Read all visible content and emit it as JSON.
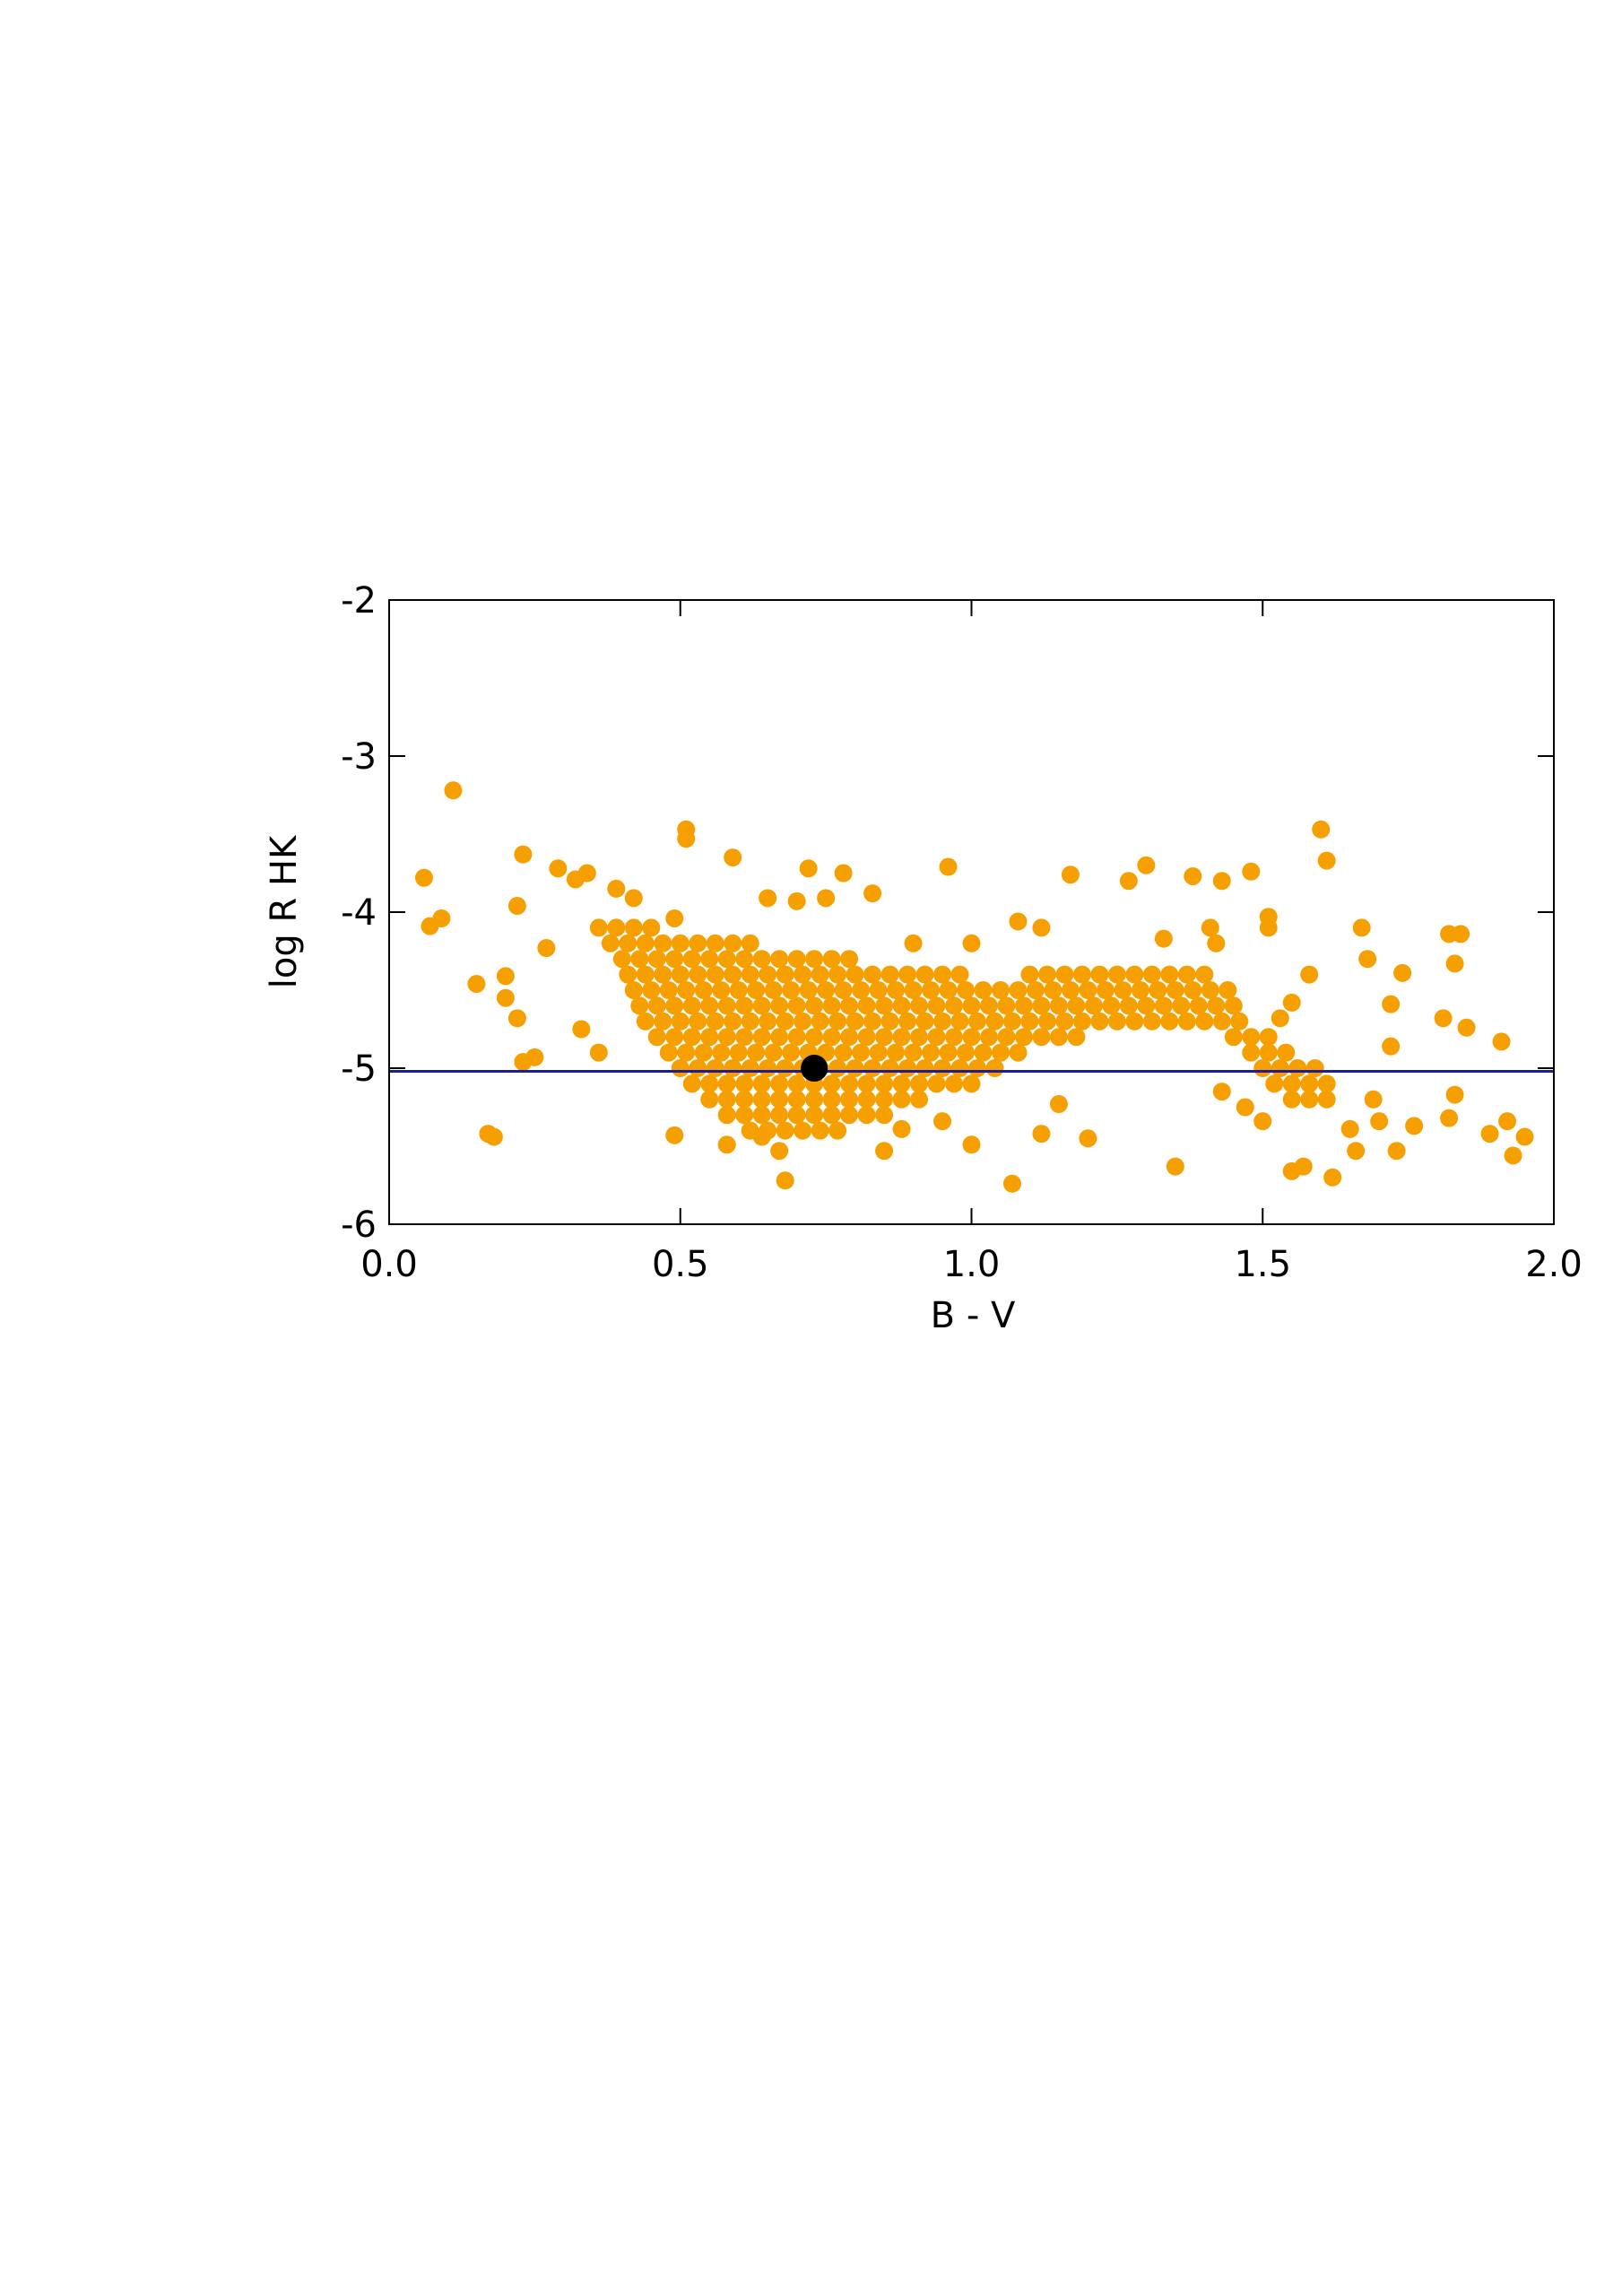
{
  "chart_data": {
    "type": "scatter",
    "xlabel": "B - V",
    "ylabel": "log R HK",
    "xlim": [
      0,
      2
    ],
    "ylim": [
      -6,
      -2
    ],
    "xticks": [
      {
        "value": 0,
        "label": "0.0"
      },
      0.5,
      {
        "value": 1,
        "label": "1.0"
      },
      1.5,
      {
        "value": 2,
        "label": "2.0"
      }
    ],
    "yticks": [
      -2,
      -3,
      -4,
      -5,
      -6
    ],
    "reference_lines": [
      {
        "y": -5.02,
        "color": "#1c1c9c"
      }
    ],
    "series": [
      {
        "color": "#f5a000",
        "x": [
          0.36,
          0.39,
          0.42,
          0.45,
          0.38,
          0.41,
          0.44,
          0.47,
          0.5,
          0.53,
          0.56,
          0.59,
          0.62,
          0.4,
          0.43,
          0.46,
          0.49,
          0.52,
          0.55,
          0.58,
          0.61,
          0.64,
          0.67,
          0.7,
          0.73,
          0.76,
          0.79,
          0.41,
          0.44,
          0.47,
          0.5,
          0.53,
          0.56,
          0.59,
          0.62,
          0.65,
          0.68,
          0.71,
          0.74,
          0.77,
          0.8,
          0.83,
          0.86,
          0.89,
          0.92,
          0.95,
          0.98,
          1.1,
          1.13,
          1.16,
          1.19,
          1.22,
          1.25,
          1.28,
          1.31,
          1.34,
          1.37,
          1.4,
          0.42,
          0.45,
          0.48,
          0.51,
          0.54,
          0.57,
          0.6,
          0.63,
          0.66,
          0.69,
          0.72,
          0.75,
          0.78,
          0.81,
          0.84,
          0.87,
          0.9,
          0.93,
          0.96,
          0.99,
          1.02,
          1.05,
          1.08,
          1.11,
          1.14,
          1.17,
          1.2,
          1.23,
          1.26,
          1.29,
          1.32,
          1.35,
          1.38,
          1.41,
          1.44,
          0.43,
          0.46,
          0.49,
          0.52,
          0.55,
          0.58,
          0.61,
          0.64,
          0.67,
          0.7,
          0.73,
          0.76,
          0.79,
          0.82,
          0.85,
          0.88,
          0.91,
          0.94,
          0.97,
          1.0,
          1.03,
          1.06,
          1.09,
          1.12,
          1.15,
          1.18,
          1.21,
          1.24,
          1.27,
          1.3,
          1.33,
          1.36,
          1.39,
          1.42,
          1.45,
          0.44,
          0.47,
          0.5,
          0.53,
          0.56,
          0.59,
          0.62,
          0.65,
          0.68,
          0.71,
          0.74,
          0.77,
          0.8,
          0.83,
          0.86,
          0.89,
          0.92,
          0.95,
          0.98,
          1.01,
          1.04,
          1.07,
          1.1,
          1.13,
          1.16,
          1.19,
          1.22,
          1.25,
          1.28,
          1.31,
          1.34,
          1.37,
          1.4,
          1.43,
          1.46,
          0.46,
          0.49,
          0.52,
          0.55,
          0.58,
          0.61,
          0.64,
          0.67,
          0.7,
          0.73,
          0.76,
          0.79,
          0.82,
          0.85,
          0.88,
          0.91,
          0.94,
          0.97,
          1.0,
          1.03,
          1.06,
          1.09,
          1.12,
          1.15,
          1.18,
          1.45,
          1.48,
          1.51,
          0.48,
          0.51,
          0.54,
          0.57,
          0.6,
          0.63,
          0.66,
          0.69,
          0.72,
          0.75,
          0.78,
          0.81,
          0.84,
          0.87,
          0.9,
          0.93,
          0.96,
          0.99,
          1.02,
          1.05,
          1.08,
          1.48,
          1.51,
          1.54,
          0.5,
          0.53,
          0.56,
          0.59,
          0.62,
          0.65,
          0.68,
          0.71,
          0.74,
          0.77,
          0.8,
          0.83,
          0.86,
          0.89,
          0.92,
          0.95,
          0.98,
          1.01,
          1.04,
          1.5,
          1.53,
          1.56,
          1.59,
          0.52,
          0.55,
          0.58,
          0.61,
          0.64,
          0.67,
          0.7,
          0.73,
          0.76,
          0.79,
          0.82,
          0.85,
          0.88,
          0.91,
          0.94,
          0.97,
          1.0,
          1.52,
          1.55,
          1.58,
          1.61,
          0.55,
          0.58,
          0.61,
          0.64,
          0.67,
          0.7,
          0.73,
          0.76,
          0.79,
          0.82,
          0.85,
          0.88,
          0.91,
          1.55,
          1.58,
          1.61,
          0.58,
          0.61,
          0.64,
          0.67,
          0.7,
          0.73,
          0.76,
          0.79,
          0.82,
          0.85,
          0.62,
          0.65,
          0.68,
          0.71,
          0.74,
          0.77
        ],
        "values": [
          -4.1,
          -4.1,
          -4.1,
          -4.1,
          -4.2,
          -4.2,
          -4.2,
          -4.2,
          -4.2,
          -4.2,
          -4.2,
          -4.2,
          -4.2,
          -4.3,
          -4.3,
          -4.3,
          -4.3,
          -4.3,
          -4.3,
          -4.3,
          -4.3,
          -4.3,
          -4.3,
          -4.3,
          -4.3,
          -4.3,
          -4.3,
          -4.4,
          -4.4,
          -4.4,
          -4.4,
          -4.4,
          -4.4,
          -4.4,
          -4.4,
          -4.4,
          -4.4,
          -4.4,
          -4.4,
          -4.4,
          -4.4,
          -4.4,
          -4.4,
          -4.4,
          -4.4,
          -4.4,
          -4.4,
          -4.4,
          -4.4,
          -4.4,
          -4.4,
          -4.4,
          -4.4,
          -4.4,
          -4.4,
          -4.4,
          -4.4,
          -4.4,
          -4.5,
          -4.5,
          -4.5,
          -4.5,
          -4.5,
          -4.5,
          -4.5,
          -4.5,
          -4.5,
          -4.5,
          -4.5,
          -4.5,
          -4.5,
          -4.5,
          -4.5,
          -4.5,
          -4.5,
          -4.5,
          -4.5,
          -4.5,
          -4.5,
          -4.5,
          -4.5,
          -4.5,
          -4.5,
          -4.5,
          -4.5,
          -4.5,
          -4.5,
          -4.5,
          -4.5,
          -4.5,
          -4.5,
          -4.5,
          -4.5,
          -4.6,
          -4.6,
          -4.6,
          -4.6,
          -4.6,
          -4.6,
          -4.6,
          -4.6,
          -4.6,
          -4.6,
          -4.6,
          -4.6,
          -4.6,
          -4.6,
          -4.6,
          -4.6,
          -4.6,
          -4.6,
          -4.6,
          -4.6,
          -4.6,
          -4.6,
          -4.6,
          -4.6,
          -4.6,
          -4.6,
          -4.6,
          -4.6,
          -4.6,
          -4.6,
          -4.6,
          -4.6,
          -4.6,
          -4.6,
          -4.6,
          -4.7,
          -4.7,
          -4.7,
          -4.7,
          -4.7,
          -4.7,
          -4.7,
          -4.7,
          -4.7,
          -4.7,
          -4.7,
          -4.7,
          -4.7,
          -4.7,
          -4.7,
          -4.7,
          -4.7,
          -4.7,
          -4.7,
          -4.7,
          -4.7,
          -4.7,
          -4.7,
          -4.7,
          -4.7,
          -4.7,
          -4.7,
          -4.7,
          -4.7,
          -4.7,
          -4.7,
          -4.7,
          -4.7,
          -4.7,
          -4.7,
          -4.8,
          -4.8,
          -4.8,
          -4.8,
          -4.8,
          -4.8,
          -4.8,
          -4.8,
          -4.8,
          -4.8,
          -4.8,
          -4.8,
          -4.8,
          -4.8,
          -4.8,
          -4.8,
          -4.8,
          -4.8,
          -4.8,
          -4.8,
          -4.8,
          -4.8,
          -4.8,
          -4.8,
          -4.8,
          -4.8,
          -4.8,
          -4.8,
          -4.9,
          -4.9,
          -4.9,
          -4.9,
          -4.9,
          -4.9,
          -4.9,
          -4.9,
          -4.9,
          -4.9,
          -4.9,
          -4.9,
          -4.9,
          -4.9,
          -4.9,
          -4.9,
          -4.9,
          -4.9,
          -4.9,
          -4.9,
          -4.9,
          -4.9,
          -4.9,
          -4.9,
          -5.0,
          -5.0,
          -5.0,
          -5.0,
          -5.0,
          -5.0,
          -5.0,
          -5.0,
          -5.0,
          -5.0,
          -5.0,
          -5.0,
          -5.0,
          -5.0,
          -5.0,
          -5.0,
          -5.0,
          -5.0,
          -5.0,
          -5.0,
          -5.0,
          -5.0,
          -5.0,
          -5.1,
          -5.1,
          -5.1,
          -5.1,
          -5.1,
          -5.1,
          -5.1,
          -5.1,
          -5.1,
          -5.1,
          -5.1,
          -5.1,
          -5.1,
          -5.1,
          -5.1,
          -5.1,
          -5.1,
          -5.1,
          -5.1,
          -5.1,
          -5.1,
          -5.2,
          -5.2,
          -5.2,
          -5.2,
          -5.2,
          -5.2,
          -5.2,
          -5.2,
          -5.2,
          -5.2,
          -5.2,
          -5.2,
          -5.2,
          -5.2,
          -5.2,
          -5.2,
          -5.3,
          -5.3,
          -5.3,
          -5.3,
          -5.3,
          -5.3,
          -5.3,
          -5.3,
          -5.3,
          -5.3,
          -5.4,
          -5.4,
          -5.4,
          -5.4,
          -5.4,
          -5.4
        ]
      },
      {
        "color": "#f5a000",
        "x": [
          0.06,
          0.11,
          0.07,
          0.09,
          0.15,
          0.17,
          0.18,
          0.2,
          0.2,
          0.22,
          0.23,
          0.22,
          0.23,
          0.25,
          0.27,
          0.29,
          0.32,
          0.34,
          0.36,
          0.33,
          0.51,
          0.51,
          0.59,
          0.49,
          0.58,
          0.68,
          0.72,
          0.78,
          0.83,
          0.96,
          1.0,
          1.07,
          1.12,
          1.17,
          1.2,
          1.3,
          1.27,
          1.35,
          1.38,
          1.43,
          1.48,
          1.6,
          1.61,
          1.58,
          1.67,
          1.68,
          1.72,
          1.74,
          1.72,
          1.73,
          1.81,
          1.82,
          1.84,
          1.83,
          1.85,
          1.82,
          1.83,
          1.91,
          1.92,
          1.93,
          1.95,
          1.89,
          1.62,
          1.55,
          1.57,
          1.76,
          1.69,
          1.7,
          1.66,
          1.65,
          0.64,
          0.67,
          0.85,
          0.88,
          0.95,
          1.15,
          1.43,
          1.47,
          1.5,
          1.51,
          1.51,
          1.53,
          1.55,
          1.12,
          1.08,
          1.0,
          0.9,
          1.33,
          1.41,
          1.42,
          0.39,
          0.42,
          0.49,
          0.65,
          0.7,
          0.75
        ],
        "values": [
          -3.78,
          -3.22,
          -4.09,
          -4.04,
          -4.46,
          -5.42,
          -5.44,
          -4.41,
          -4.55,
          -4.68,
          -3.63,
          -3.96,
          -4.96,
          -4.93,
          -4.23,
          -3.72,
          -3.79,
          -3.75,
          -4.9,
          -4.75,
          -3.47,
          -3.53,
          -3.65,
          -5.43,
          -5.49,
          -5.72,
          -3.72,
          -3.75,
          -3.88,
          -3.71,
          -5.49,
          -5.74,
          -5.42,
          -3.76,
          -5.45,
          -3.7,
          -3.8,
          -5.63,
          -3.77,
          -3.8,
          -3.74,
          -3.47,
          -3.67,
          -4.4,
          -4.1,
          -4.3,
          -4.59,
          -4.39,
          -4.86,
          -5.53,
          -4.68,
          -4.14,
          -4.14,
          -4.33,
          -4.74,
          -5.32,
          -5.17,
          -4.83,
          -5.34,
          -5.56,
          -5.44,
          -5.42,
          -5.7,
          -5.66,
          -5.63,
          -5.37,
          -5.2,
          -5.34,
          -5.53,
          -5.39,
          -5.44,
          -5.53,
          -5.53,
          -5.39,
          -5.34,
          -5.23,
          -5.15,
          -5.25,
          -5.34,
          -4.1,
          -4.03,
          -4.68,
          -4.58,
          -4.1,
          -4.06,
          -4.2,
          -4.2,
          -4.17,
          -4.1,
          -4.2,
          -3.85,
          -3.91,
          -4.04,
          -3.91,
          -3.93,
          -3.91
        ]
      },
      {
        "color": "#000000",
        "x": [
          0.73
        ],
        "values": [
          -5.0
        ]
      }
    ]
  }
}
